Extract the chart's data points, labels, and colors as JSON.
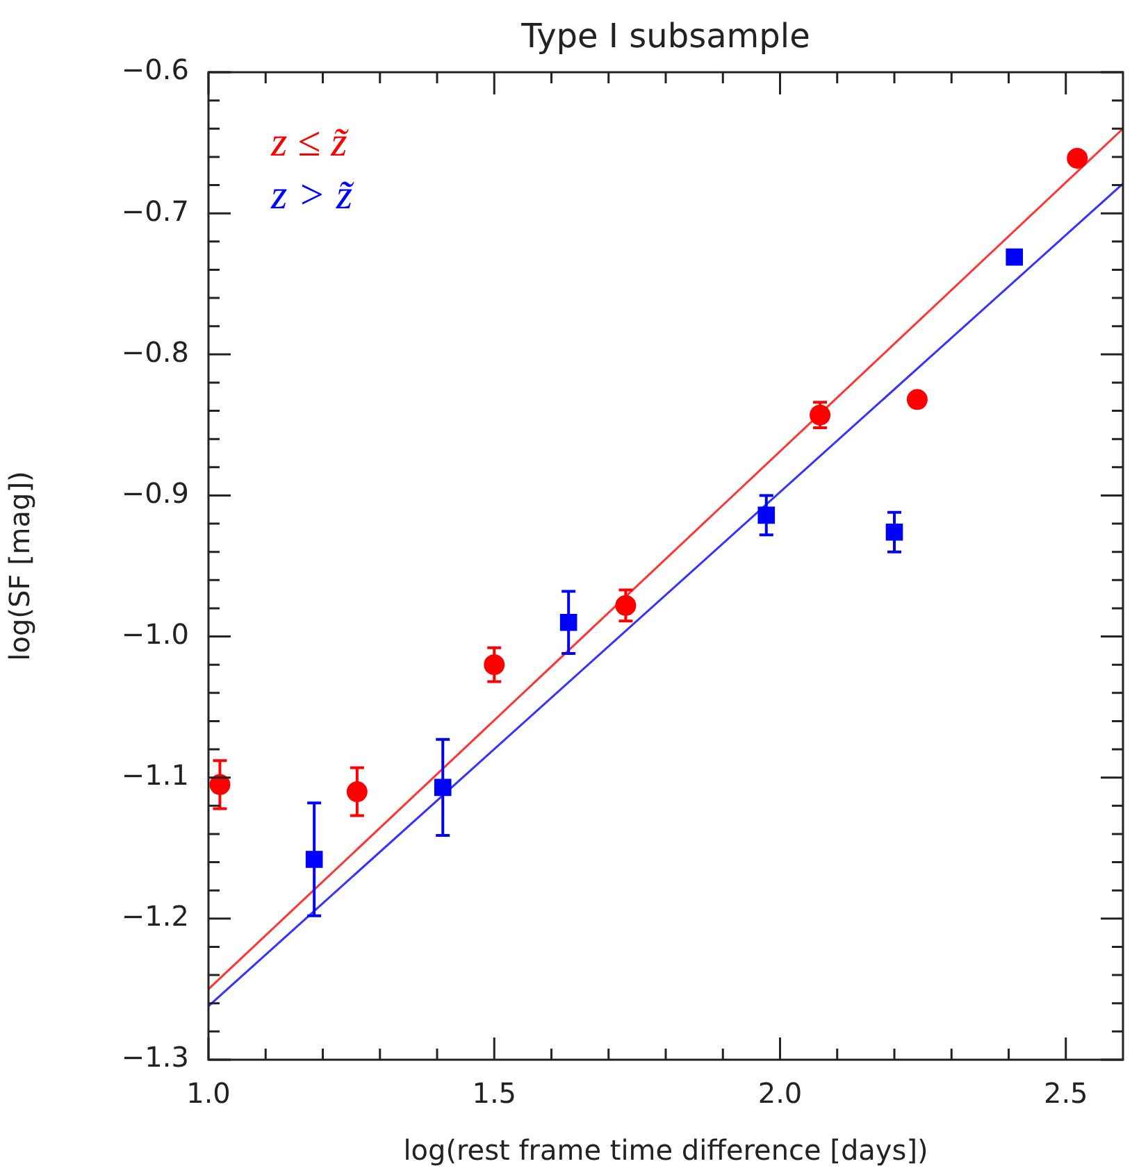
{
  "chart_data": {
    "type": "scatter",
    "title": "Type I subsample",
    "xlabel": "log(rest frame time difference [days])",
    "ylabel": "log(SF [mag])",
    "xlim": [
      1.0,
      2.6
    ],
    "ylim": [
      -1.3,
      -0.6
    ],
    "xticks": [
      {
        "value": 1,
        "label": "1.0"
      },
      {
        "value": 1.1,
        "label": null
      },
      {
        "value": 1.2,
        "label": null
      },
      {
        "value": 1.3,
        "label": null
      },
      {
        "value": 1.4,
        "label": null
      },
      1.5,
      {
        "value": 1.6,
        "label": null
      },
      {
        "value": 1.7,
        "label": null
      },
      {
        "value": 1.8,
        "label": null
      },
      {
        "value": 1.9,
        "label": null
      },
      {
        "value": 2,
        "label": "2.0"
      },
      {
        "value": 2.1,
        "label": null
      },
      {
        "value": 2.2,
        "label": null
      },
      {
        "value": 2.3,
        "label": null
      },
      {
        "value": 2.4,
        "label": null
      },
      2.5
    ],
    "yticks": [
      {
        "value": -1.3,
        "label": "−1.3"
      },
      {
        "value": -1.28,
        "label": null
      },
      {
        "value": -1.26,
        "label": null
      },
      {
        "value": -1.24,
        "label": null
      },
      {
        "value": -1.22,
        "label": null
      },
      {
        "value": -1.2,
        "label": "−1.2"
      },
      {
        "value": -1.18,
        "label": null
      },
      {
        "value": -1.16,
        "label": null
      },
      {
        "value": -1.14,
        "label": null
      },
      {
        "value": -1.12,
        "label": null
      },
      {
        "value": -1.1,
        "label": "−1.1"
      },
      {
        "value": -1.08,
        "label": null
      },
      {
        "value": -1.06,
        "label": null
      },
      {
        "value": -1.04,
        "label": null
      },
      {
        "value": -1.02,
        "label": null
      },
      {
        "value": -1.0,
        "label": "−1.0"
      },
      {
        "value": -0.98,
        "label": null
      },
      {
        "value": -0.96,
        "label": null
      },
      {
        "value": -0.94,
        "label": null
      },
      {
        "value": -0.92,
        "label": null
      },
      {
        "value": -0.9,
        "label": "−0.9"
      },
      {
        "value": -0.88,
        "label": null
      },
      {
        "value": -0.86,
        "label": null
      },
      {
        "value": -0.84,
        "label": null
      },
      {
        "value": -0.82,
        "label": null
      },
      {
        "value": -0.8,
        "label": "−0.8"
      },
      {
        "value": -0.78,
        "label": null
      },
      {
        "value": -0.76,
        "label": null
      },
      {
        "value": -0.74,
        "label": null
      },
      {
        "value": -0.72,
        "label": null
      },
      {
        "value": -0.7,
        "label": "−0.7"
      },
      {
        "value": -0.68,
        "label": null
      },
      {
        "value": -0.66,
        "label": null
      },
      {
        "value": -0.64,
        "label": null
      },
      {
        "value": -0.62,
        "label": null
      },
      {
        "value": -0.6,
        "label": "−0.6"
      }
    ],
    "grid": false,
    "legend": "top left",
    "series": [
      {
        "name": "z ≤ z̃",
        "color": "#ff0000",
        "marker": "circle",
        "x": [
          1.02,
          1.26,
          1.5,
          1.73,
          2.07,
          2.24,
          2.52
        ],
        "values": [
          -1.105,
          -1.11,
          -1.02,
          -0.978,
          -0.843,
          -0.832,
          -0.661
        ],
        "errors": [
          0.017,
          0.017,
          0.012,
          0.011,
          0.009,
          null,
          null
        ]
      },
      {
        "name": "z > z̃",
        "color": "#0000ff",
        "marker": "square",
        "x": [
          1.185,
          1.41,
          1.63,
          1.976,
          2.2,
          2.41
        ],
        "values": [
          -1.158,
          -1.107,
          -0.99,
          -0.914,
          -0.926,
          -0.731
        ],
        "errors": [
          0.04,
          0.034,
          0.022,
          0.014,
          0.014,
          null
        ]
      },
      {
        "type": "line",
        "color": "#ff3333",
        "marker": "none",
        "x": [
          1.0,
          2.6
        ],
        "values": [
          -1.25,
          -0.64
        ]
      },
      {
        "type": "line",
        "color": "#3333ff",
        "marker": "none",
        "x": [
          1.0,
          2.6
        ],
        "values": [
          -1.262,
          -0.679
        ]
      }
    ]
  }
}
